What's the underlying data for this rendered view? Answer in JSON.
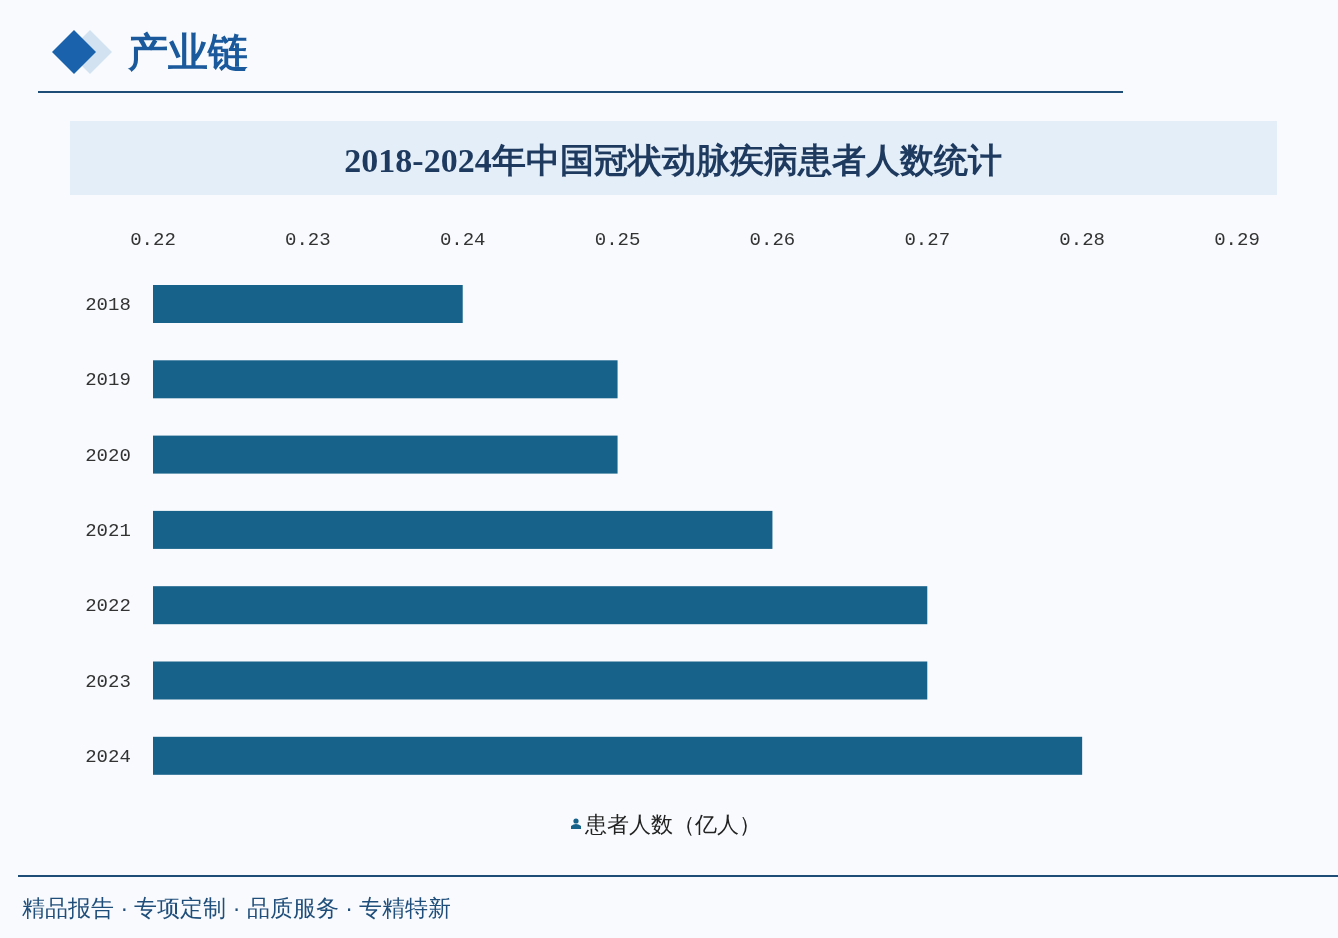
{
  "chart_data": {
    "type": "bar",
    "orientation": "horizontal",
    "title": "2018-2024年中国冠状动脉疾病患者人数统计",
    "categories": [
      "2018",
      "2019",
      "2020",
      "2021",
      "2022",
      "2023",
      "2024"
    ],
    "series": [
      {
        "name": "患者人数（亿人）",
        "color": "#17628a",
        "values": [
          0.24,
          0.25,
          0.25,
          0.26,
          0.27,
          0.27,
          0.28
        ]
      }
    ],
    "xlim": [
      0.22,
      0.29
    ],
    "xticks": [
      0.22,
      0.23,
      0.24,
      0.25,
      0.26,
      0.27,
      0.28,
      0.29
    ],
    "legend": "bottom",
    "annotations": [
      "产业链",
      "精品报告 · 专项定制 · 品质服务 · 专精特新"
    ]
  }
}
